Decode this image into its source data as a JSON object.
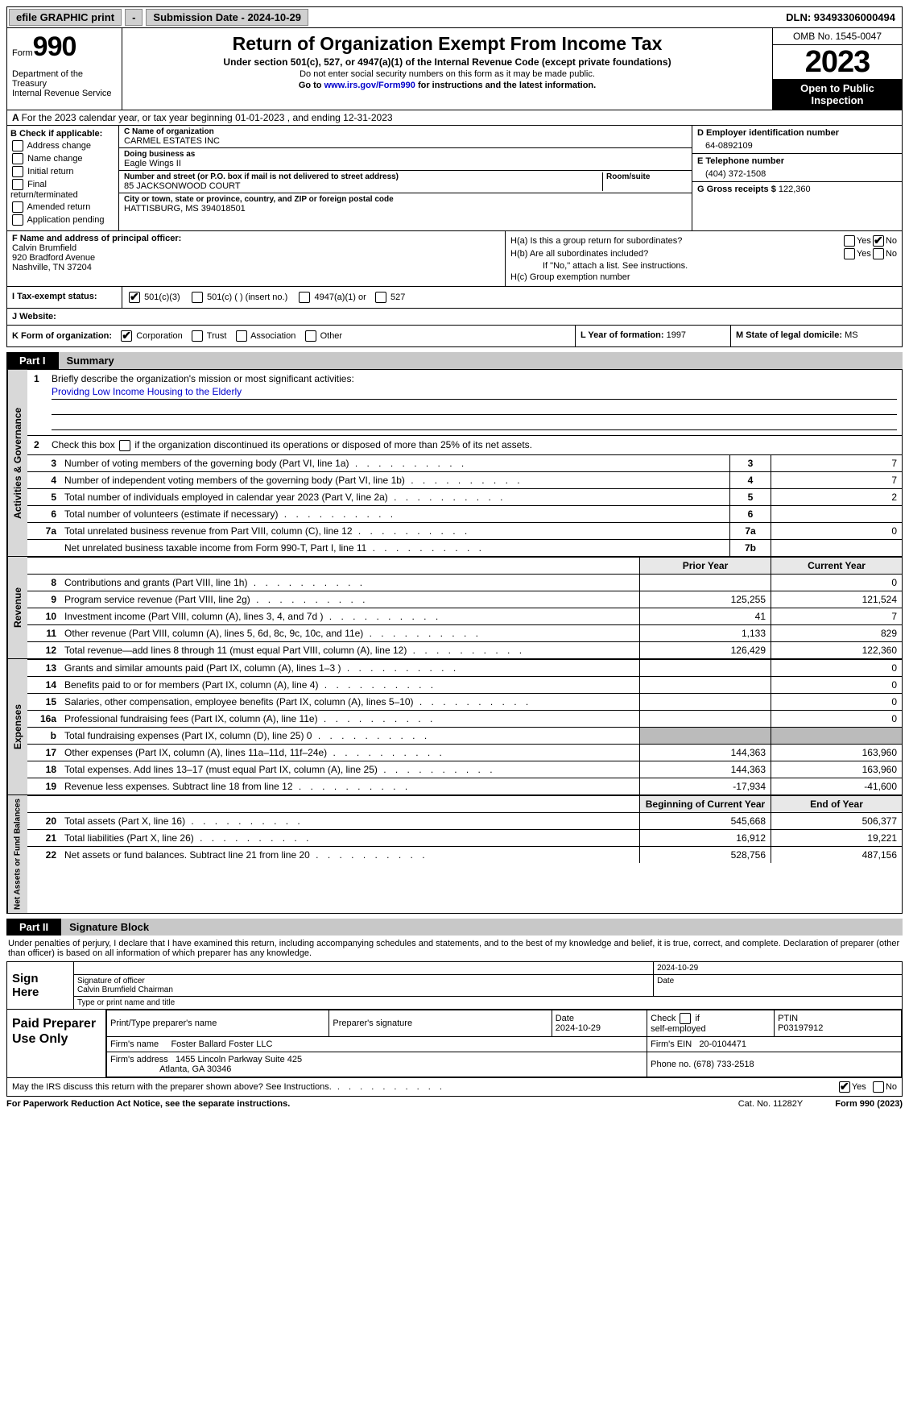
{
  "topbar": {
    "efile": "efile GRAPHIC print",
    "print_btn": "-",
    "submission_label": "Submission Date - 2024-10-29",
    "dln": "DLN: 93493306000494"
  },
  "header": {
    "form_label": "Form",
    "form_num": "990",
    "title": "Return of Organization Exempt From Income Tax",
    "subtitle": "Under section 501(c), 527, or 4947(a)(1) of the Internal Revenue Code (except private foundations)",
    "note1": "Do not enter social security numbers on this form as it may be made public.",
    "note2_pre": "Go to ",
    "note2_link": "www.irs.gov/Form990",
    "note2_post": " for instructions and the latest information.",
    "dept": "Department of the Treasury\nInternal Revenue Service",
    "omb": "OMB No. 1545-0047",
    "year": "2023",
    "otp": "Open to Public Inspection"
  },
  "lineA": "For the 2023 calendar year, or tax year beginning 01-01-2023    , and ending 12-31-2023",
  "blockB": {
    "hdr": "B Check if applicable:",
    "items": [
      "Address change",
      "Name change",
      "Initial return",
      "Final return/terminated",
      "Amended return",
      "Application pending"
    ]
  },
  "blockC": {
    "name_lbl": "C Name of organization",
    "name": "CARMEL ESTATES INC",
    "dba_lbl": "Doing business as",
    "dba": "Eagle Wings II",
    "street_lbl": "Number and street (or P.O. box if mail is not delivered to street address)",
    "street": "85 JACKSONWOOD COURT",
    "room_lbl": "Room/suite",
    "city_lbl": "City or town, state or province, country, and ZIP or foreign postal code",
    "city": "HATTISBURG, MS  394018501"
  },
  "blockD": {
    "lbl": "D Employer identification number",
    "val": "64-0892109"
  },
  "blockE": {
    "lbl": "E Telephone number",
    "val": "(404) 372-1508"
  },
  "blockG": {
    "lbl": "G Gross receipts $",
    "val": "122,360"
  },
  "blockF": {
    "lbl": "F  Name and address of principal officer:",
    "name": "Calvin Brumfield",
    "addr1": "920 Bradford Avenue",
    "addr2": "Nashville, TN  37204"
  },
  "blockH": {
    "a_lbl": "H(a)  Is this a group return for subordinates?",
    "b_lbl": "H(b)  Are all subordinates included?",
    "b_note": "If \"No,\" attach a list. See instructions.",
    "c_lbl": "H(c)  Group exemption number"
  },
  "blockI": {
    "lbl": "I    Tax-exempt status:",
    "opts": [
      "501(c)(3)",
      "501(c) (  ) (insert no.)",
      "4947(a)(1) or",
      "527"
    ]
  },
  "blockJ": {
    "lbl": "J   Website:"
  },
  "blockK": {
    "lbl": "K Form of organization:",
    "opts": [
      "Corporation",
      "Trust",
      "Association",
      "Other"
    ]
  },
  "blockL": {
    "lbl": "L Year of formation:",
    "val": "1997"
  },
  "blockM": {
    "lbl": "M State of legal domicile:",
    "val": "MS"
  },
  "part1": {
    "tag": "Part I",
    "title": "Summary",
    "side_gov": "Activities & Governance",
    "side_rev": "Revenue",
    "side_exp": "Expenses",
    "side_net": "Net Assets or Fund Balances",
    "line1_lbl": "Briefly describe the organization's mission or most significant activities:",
    "line1_val": "Providng Low Income Housing to the Elderly",
    "line2": "Check this box      if the organization discontinued its operations or disposed of more than 25% of its net assets.",
    "lines_gov": [
      {
        "n": "3",
        "t": "Number of voting members of the governing body (Part VI, line 1a)",
        "b": "3",
        "v": "7"
      },
      {
        "n": "4",
        "t": "Number of independent voting members of the governing body (Part VI, line 1b)",
        "b": "4",
        "v": "7"
      },
      {
        "n": "5",
        "t": "Total number of individuals employed in calendar year 2023 (Part V, line 2a)",
        "b": "5",
        "v": "2"
      },
      {
        "n": "6",
        "t": "Total number of volunteers (estimate if necessary)",
        "b": "6",
        "v": ""
      },
      {
        "n": "7a",
        "t": "Total unrelated business revenue from Part VIII, column (C), line 12",
        "b": "7a",
        "v": "0"
      },
      {
        "n": "",
        "t": "Net unrelated business taxable income from Form 990-T, Part I, line 11",
        "b": "7b",
        "v": ""
      }
    ],
    "hdr_prior": "Prior Year",
    "hdr_current": "Current Year",
    "lines_rev": [
      {
        "n": "8",
        "t": "Contributions and grants (Part VIII, line 1h)",
        "p": "",
        "c": "0"
      },
      {
        "n": "9",
        "t": "Program service revenue (Part VIII, line 2g)",
        "p": "125,255",
        "c": "121,524"
      },
      {
        "n": "10",
        "t": "Investment income (Part VIII, column (A), lines 3, 4, and 7d )",
        "p": "41",
        "c": "7"
      },
      {
        "n": "11",
        "t": "Other revenue (Part VIII, column (A), lines 5, 6d, 8c, 9c, 10c, and 11e)",
        "p": "1,133",
        "c": "829"
      },
      {
        "n": "12",
        "t": "Total revenue—add lines 8 through 11 (must equal Part VIII, column (A), line 12)",
        "p": "126,429",
        "c": "122,360"
      }
    ],
    "lines_exp": [
      {
        "n": "13",
        "t": "Grants and similar amounts paid (Part IX, column (A), lines 1–3 )",
        "p": "",
        "c": "0"
      },
      {
        "n": "14",
        "t": "Benefits paid to or for members (Part IX, column (A), line 4)",
        "p": "",
        "c": "0"
      },
      {
        "n": "15",
        "t": "Salaries, other compensation, employee benefits (Part IX, column (A), lines 5–10)",
        "p": "",
        "c": "0"
      },
      {
        "n": "16a",
        "t": "Professional fundraising fees (Part IX, column (A), line 11e)",
        "p": "",
        "c": "0"
      },
      {
        "n": "b",
        "t": "Total fundraising expenses (Part IX, column (D), line 25) 0",
        "p": "SHADE",
        "c": "SHADE"
      },
      {
        "n": "17",
        "t": "Other expenses (Part IX, column (A), lines 11a–11d, 11f–24e)",
        "p": "144,363",
        "c": "163,960"
      },
      {
        "n": "18",
        "t": "Total expenses. Add lines 13–17 (must equal Part IX, column (A), line 25)",
        "p": "144,363",
        "c": "163,960"
      },
      {
        "n": "19",
        "t": "Revenue less expenses. Subtract line 18 from line 12",
        "p": "-17,934",
        "c": "-41,600"
      }
    ],
    "hdr_begin": "Beginning of Current Year",
    "hdr_end": "End of Year",
    "lines_net": [
      {
        "n": "20",
        "t": "Total assets (Part X, line 16)",
        "p": "545,668",
        "c": "506,377"
      },
      {
        "n": "21",
        "t": "Total liabilities (Part X, line 26)",
        "p": "16,912",
        "c": "19,221"
      },
      {
        "n": "22",
        "t": "Net assets or fund balances. Subtract line 21 from line 20",
        "p": "528,756",
        "c": "487,156"
      }
    ]
  },
  "part2": {
    "tag": "Part II",
    "title": "Signature Block",
    "intro": "Under penalties of perjury, I declare that I have examined this return, including accompanying schedules and statements, and to the best of my knowledge and belief, it is true, correct, and complete. Declaration of preparer (other than officer) is based on all information of which preparer has any knowledge.",
    "sign_here": "Sign Here",
    "sig_date": "2024-10-29",
    "sig_lbl": "Signature of officer",
    "sig_name": "Calvin Brumfield  Chairman",
    "sig_type_lbl": "Type or print name and title",
    "date_lbl": "Date",
    "paid": "Paid Preparer Use Only",
    "prep_name_lbl": "Print/Type preparer's name",
    "prep_sig_lbl": "Preparer's signature",
    "prep_date_lbl": "Date",
    "prep_date": "2024-10-29",
    "prep_check_lbl": "Check        if self-employed",
    "ptin_lbl": "PTIN",
    "ptin": "P03197912",
    "firm_name_lbl": "Firm's name",
    "firm_name": "Foster Ballard Foster LLC",
    "firm_ein_lbl": "Firm's EIN",
    "firm_ein": "20-0104471",
    "firm_addr_lbl": "Firm's address",
    "firm_addr1": "1455 Lincoln Parkway Suite 425",
    "firm_addr2": "Atlanta, GA  30346",
    "phone_lbl": "Phone no.",
    "phone": "(678) 733-2518",
    "discuss": "May the IRS discuss this return with the preparer shown above? See Instructions.",
    "yes": "Yes",
    "no": "No"
  },
  "footer": {
    "l": "For Paperwork Reduction Act Notice, see the separate instructions.",
    "m": "Cat. No. 11282Y",
    "r": "Form 990 (2023)"
  }
}
